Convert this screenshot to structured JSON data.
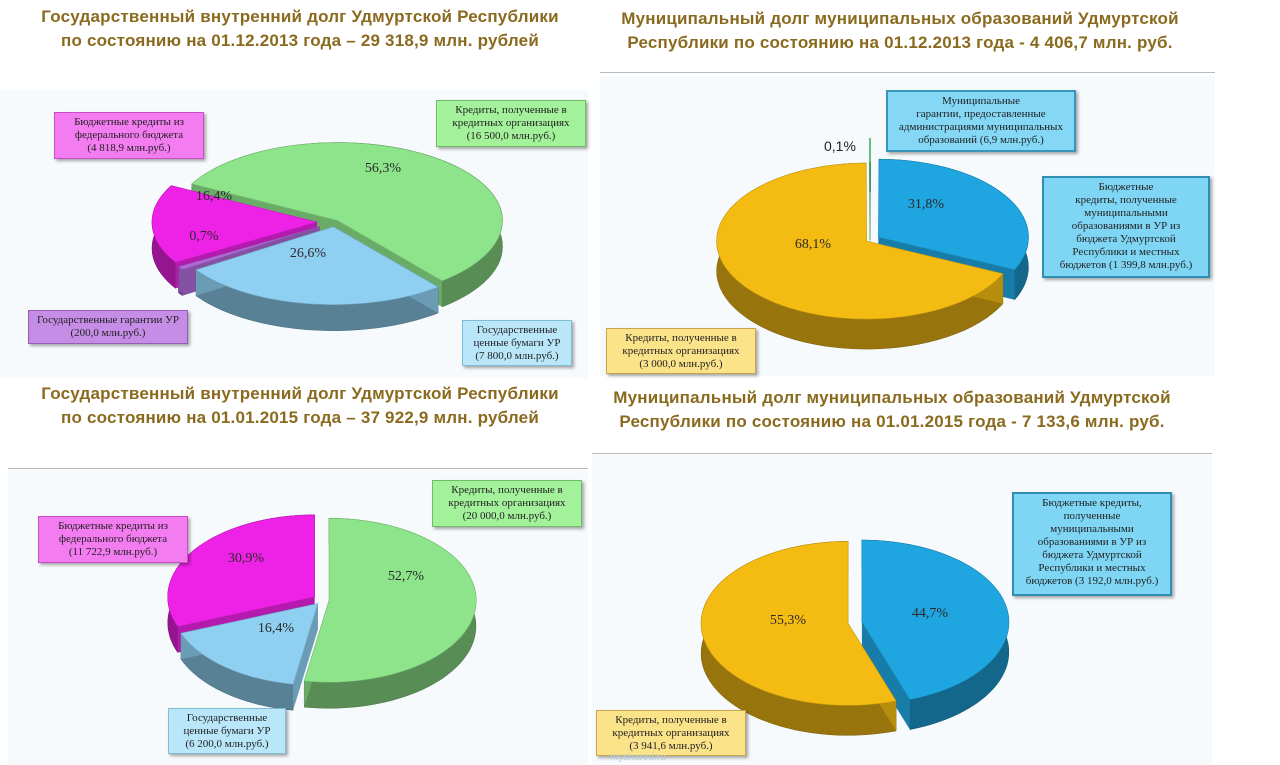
{
  "panels": {
    "p1": {
      "title_line1": "Государственный внутренний долг Удмуртской Республики",
      "title_line2": "по состоянию на 01.12.2013 года – 29 318,9 млн. рублей",
      "labels": {
        "budget_credits": [
          "Бюджетные кредиты  из",
          "федерального бюджета",
          "(4 818,9 млн.руб.)"
        ],
        "bank_credits": [
          "Кредиты, полученные в",
          "кредитных организациях",
          "(16 500,0 млн.руб.)"
        ],
        "guarantees": [
          "Государственные гарантии УР",
          "(200,0 млн.руб.)"
        ],
        "securities": [
          "Государственные",
          "ценные бумаги  УР",
          "(7 800,0 млн.руб.)"
        ]
      }
    },
    "p2": {
      "title_line1": "Муниципальный долг муниципальных образований Удмуртской",
      "title_line2": "Республики по состоянию на 01.12.2013 года  - 4 406,7 млн. руб.",
      "labels": {
        "guarantees": [
          "Муниципальные",
          "гарантии, предоставленные",
          "администрациями муниципальных",
          "образований (6,9 млн.руб.)"
        ],
        "budget_credits": [
          "Бюджетные",
          "кредиты, полученные",
          "муниципальными",
          "образованиями в УР из",
          "бюджета Удмуртской",
          "Республики и местных",
          "бюджетов  (1 399,8 млн.руб.)"
        ],
        "bank_credits": [
          "Кредиты, полученные в",
          "кредитных организациях",
          "(3 000,0 млн.руб.)"
        ]
      }
    },
    "p3": {
      "title_line1": "Государственный внутренний долг Удмуртской Республики",
      "title_line2": "по состоянию на 01.01.2015 года – 37 922,9 млн. рублей",
      "labels": {
        "budget_credits": [
          "Бюджетные кредиты  из",
          "федерального бюджета",
          "(11 722,9 млн.руб.)"
        ],
        "bank_credits": [
          "Кредиты, полученные в",
          "кредитных организациях",
          "(20 000,0 млн.руб.)"
        ],
        "securities": [
          "Государственные",
          "ценные бумаги  УР",
          "(6 200,0 млн.руб.)"
        ]
      }
    },
    "p4": {
      "title_line1": "Муниципальный долг муниципальных образований Удмуртской",
      "title_line2": "Республики по состоянию на 01.01.2015 года  - 7 133,6 млн. руб.",
      "labels": {
        "budget_credits": [
          "Бюджетные кредиты,",
          "полученные",
          "муниципальными",
          "образованиями в УР из",
          "бюджета Удмуртской",
          "Республики и местных",
          "бюджетов  (3 192,0 млн.руб.)"
        ],
        "bank_credits": [
          "Кредиты, полученные в",
          "кредитных организациях",
          "(3 941,6 млн.руб.)"
        ]
      }
    }
  },
  "watermark": "myshared.ru",
  "colors": {
    "pink": "#ee22e6",
    "green": "#8ee48a",
    "violet": "#b06ad8",
    "lightblue": "#8fd0f2",
    "cyan": "#1fa6e0",
    "gold": "#f4bc13"
  },
  "chart_data": [
    {
      "type": "pie",
      "labels": [
        "Кредиты, полученные в кредитных организациях",
        "Государственные ценные бумаги УР",
        "Государственные гарантии УР",
        "Бюджетные кредиты из федерального бюджета"
      ],
      "values": [
        56.3,
        26.6,
        0.7,
        16.4
      ],
      "value_labels": [
        "56,3%",
        "26,6%",
        "0,7%",
        "16,4%"
      ],
      "amounts": [
        16500.0,
        7800.0,
        200.0,
        4818.9
      ],
      "colors": [
        "#8ee48a",
        "#8fd0f2",
        "#b06ad8",
        "#ee22e6"
      ]
    },
    {
      "type": "pie",
      "labels": [
        "Бюджетные кредиты, полученные муниципальными образованиями в УР из бюджета Удмуртской Республики и местных бюджетов",
        "Кредиты, полученные в кредитных организациях",
        "Муниципальные гарантии, предоставленные администрациями муниципальных образований"
      ],
      "values": [
        31.8,
        68.1,
        0.1
      ],
      "value_labels": [
        "31,8%",
        "68,1%",
        "0,1%"
      ],
      "amounts": [
        1399.8,
        3000.0,
        6.9
      ],
      "colors": [
        "#1fa6e0",
        "#f4bc13",
        "#2fae5b"
      ]
    },
    {
      "type": "pie",
      "labels": [
        "Кредиты, полученные в кредитных организациях",
        "Государственные ценные бумаги УР",
        "Бюджетные кредиты из федерального бюджета"
      ],
      "values": [
        52.7,
        16.4,
        30.9
      ],
      "value_labels": [
        "52,7%",
        "16,4%",
        "30,9%"
      ],
      "amounts": [
        20000.0,
        6200.0,
        11722.9
      ],
      "colors": [
        "#8ee48a",
        "#8fd0f2",
        "#ee22e6"
      ]
    },
    {
      "type": "pie",
      "labels": [
        "Бюджетные кредиты, полученные муниципальными образованиями в УР из бюджета Удмуртской Республики и местных бюджетов",
        "Кредиты, полученные в кредитных организациях"
      ],
      "values": [
        44.7,
        55.3
      ],
      "value_labels": [
        "44,7%",
        "55,3%"
      ],
      "amounts": [
        3192.0,
        3941.6
      ],
      "colors": [
        "#1fa6e0",
        "#f4bc13"
      ]
    }
  ]
}
